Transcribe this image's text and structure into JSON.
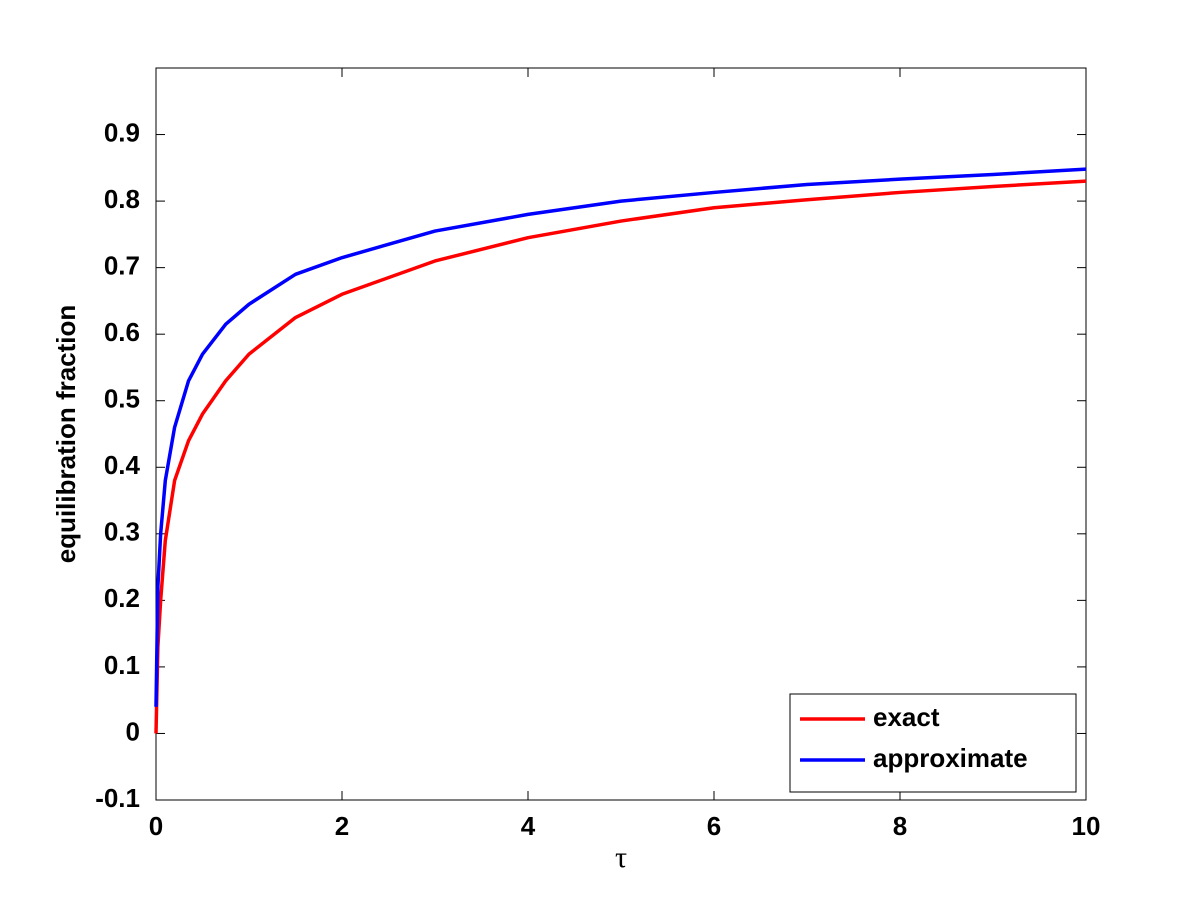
{
  "chart_data": {
    "type": "line",
    "xlabel": "τ",
    "ylabel": "equilibration fraction",
    "x": [
      0,
      0.02,
      0.05,
      0.1,
      0.2,
      0.35,
      0.5,
      0.75,
      1,
      1.5,
      2,
      3,
      4,
      5,
      6,
      7,
      8,
      9,
      10
    ],
    "series": [
      {
        "name": "exact",
        "color": "#ff0000",
        "values": [
          0,
          0.13,
          0.2,
          0.29,
          0.38,
          0.44,
          0.48,
          0.53,
          0.57,
          0.625,
          0.66,
          0.71,
          0.745,
          0.77,
          0.79,
          0.802,
          0.813,
          0.822,
          0.83
        ]
      },
      {
        "name": "approximate",
        "color": "#0000ff",
        "values": [
          0.04,
          0.22,
          0.3,
          0.38,
          0.46,
          0.53,
          0.57,
          0.615,
          0.645,
          0.69,
          0.715,
          0.755,
          0.78,
          0.8,
          0.813,
          0.825,
          0.833,
          0.84,
          0.848
        ]
      }
    ],
    "xlim": [
      0,
      10
    ],
    "xticks": [
      0,
      2,
      4,
      6,
      8,
      10
    ],
    "ylim": [
      -0.1,
      1.0
    ],
    "yticks": [
      -0.1,
      0,
      0.1,
      0.2,
      0.3,
      0.4,
      0.5,
      0.6,
      0.7,
      0.8,
      0.9
    ],
    "legend": "lower right"
  }
}
